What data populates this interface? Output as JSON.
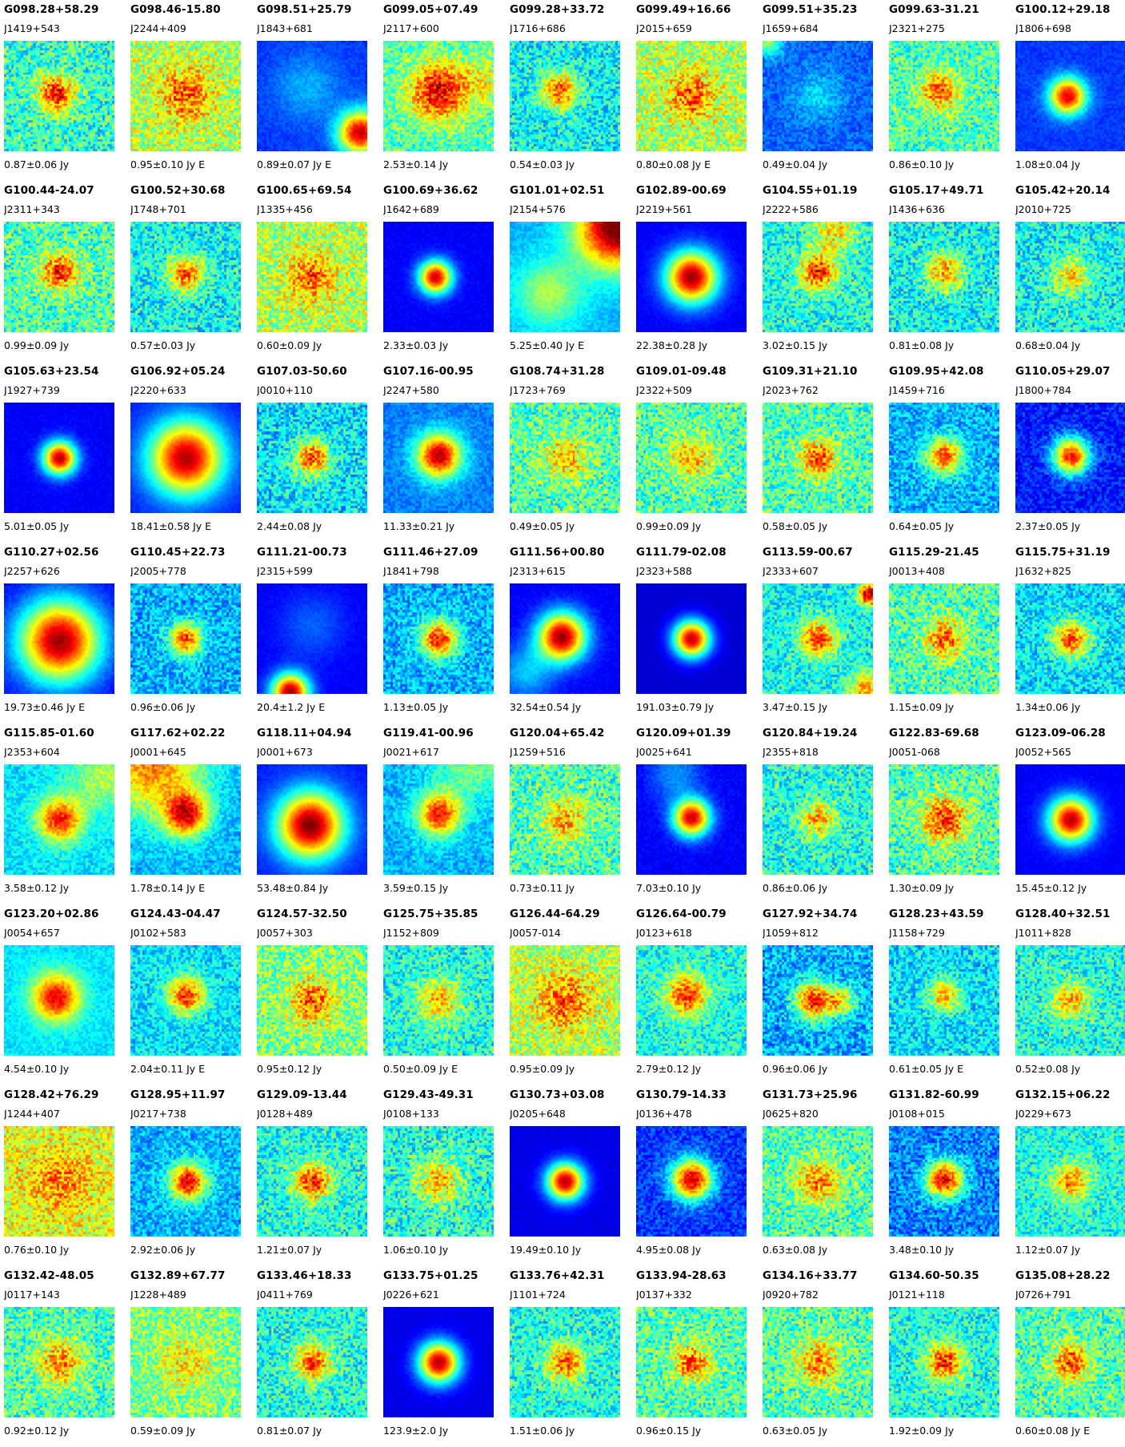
{
  "cells": [
    {
      "g": "G098.28+58.29",
      "j": "J1419+543",
      "f": "0.87±0.06 Jy"
    },
    {
      "g": "G098.46-15.80",
      "j": "J2244+409",
      "f": "0.95±0.10 Jy E"
    },
    {
      "g": "G098.51+25.79",
      "j": "J1843+681",
      "f": "0.89±0.07 Jy E"
    },
    {
      "g": "G099.05+07.49",
      "j": "J2117+600",
      "f": "2.53±0.14 Jy"
    },
    {
      "g": "G099.28+33.72",
      "j": "J1716+686",
      "f": "0.54±0.03 Jy"
    },
    {
      "g": "G099.49+16.66",
      "j": "J2015+659",
      "f": "0.80±0.08 Jy E"
    },
    {
      "g": "G099.51+35.23",
      "j": "J1659+684",
      "f": "0.49±0.04 Jy"
    },
    {
      "g": "G099.63-31.21",
      "j": "J2321+275",
      "f": "0.86±0.10 Jy"
    },
    {
      "g": "G100.12+29.18",
      "j": "J1806+698",
      "f": "1.08±0.04 Jy"
    },
    {
      "g": "G100.44-24.07",
      "j": "J2311+343",
      "f": "0.99±0.09 Jy"
    },
    {
      "g": "G100.52+30.68",
      "j": "J1748+701",
      "f": "0.57±0.03 Jy"
    },
    {
      "g": "G100.65+69.54",
      "j": "J1335+456",
      "f": "0.60±0.09 Jy"
    },
    {
      "g": "G100.69+36.62",
      "j": "J1642+689",
      "f": "2.33±0.03 Jy"
    },
    {
      "g": "G101.01+02.51",
      "j": "J2154+576",
      "f": "5.25±0.40 Jy E"
    },
    {
      "g": "G102.89-00.69",
      "j": "J2219+561",
      "f": "22.38±0.28 Jy"
    },
    {
      "g": "G104.55+01.19",
      "j": "J2222+586",
      "f": "3.02±0.15 Jy"
    },
    {
      "g": "G105.17+49.71",
      "j": "J1436+636",
      "f": "0.81±0.08 Jy"
    },
    {
      "g": "G105.42+20.14",
      "j": "J2010+725",
      "f": "0.68±0.04 Jy"
    },
    {
      "g": "G105.63+23.54",
      "j": "J1927+739",
      "f": "5.01±0.05 Jy"
    },
    {
      "g": "G106.92+05.24",
      "j": "J2220+633",
      "f": "18.41±0.58 Jy E"
    },
    {
      "g": "G107.03-50.60",
      "j": "J0010+110",
      "f": "2.44±0.08 Jy"
    },
    {
      "g": "G107.16-00.95",
      "j": "J2247+580",
      "f": "11.33±0.21 Jy"
    },
    {
      "g": "G108.74+31.28",
      "j": "J1723+769",
      "f": "0.49±0.05 Jy"
    },
    {
      "g": "G109.01-09.48",
      "j": "J2322+509",
      "f": "0.99±0.09 Jy"
    },
    {
      "g": "G109.31+21.10",
      "j": "J2023+762",
      "f": "0.58±0.05 Jy"
    },
    {
      "g": "G109.95+42.08",
      "j": "J1459+716",
      "f": "0.64±0.05 Jy"
    },
    {
      "g": "G110.05+29.07",
      "j": "J1800+784",
      "f": "2.37±0.05 Jy"
    },
    {
      "g": "G110.27+02.56",
      "j": "J2257+626",
      "f": "19.73±0.46 Jy E"
    },
    {
      "g": "G110.45+22.73",
      "j": "J2005+778",
      "f": "0.96±0.06 Jy"
    },
    {
      "g": "G111.21-00.73",
      "j": "J2315+599",
      "f": "20.4±1.2 Jy E"
    },
    {
      "g": "G111.46+27.09",
      "j": "J1841+798",
      "f": "1.13±0.05 Jy"
    },
    {
      "g": "G111.56+00.80",
      "j": "J2313+615",
      "f": "32.54±0.54 Jy"
    },
    {
      "g": "G111.79-02.08",
      "j": "J2323+588",
      "f": "191.03±0.79 Jy"
    },
    {
      "g": "G113.59-00.67",
      "j": "J2333+607",
      "f": "3.47±0.15 Jy"
    },
    {
      "g": "G115.29-21.45",
      "j": "J0013+408",
      "f": "1.15±0.09 Jy"
    },
    {
      "g": "G115.75+31.19",
      "j": "J1632+825",
      "f": "1.34±0.06 Jy"
    },
    {
      "g": "G115.85-01.60",
      "j": "J2353+604",
      "f": "3.58±0.12 Jy"
    },
    {
      "g": "G117.62+02.22",
      "j": "J0001+645",
      "f": "1.78±0.14 Jy E"
    },
    {
      "g": "G118.11+04.94",
      "j": "J0001+673",
      "f": "53.48±0.84 Jy"
    },
    {
      "g": "G119.41-00.96",
      "j": "J0021+617",
      "f": "3.59±0.15 Jy"
    },
    {
      "g": "G120.04+65.42",
      "j": "J1259+516",
      "f": "0.73±0.11 Jy"
    },
    {
      "g": "G120.09+01.39",
      "j": "J0025+641",
      "f": "7.03±0.10 Jy"
    },
    {
      "g": "G120.84+19.24",
      "j": "J2355+818",
      "f": "0.86±0.06 Jy"
    },
    {
      "g": "G122.83-69.68",
      "j": "J0051-068",
      "f": "1.30±0.09 Jy"
    },
    {
      "g": "G123.09-06.28",
      "j": "J0052+565",
      "f": "15.45±0.12 Jy"
    },
    {
      "g": "G123.20+02.86",
      "j": "J0054+657",
      "f": "4.54±0.10 Jy"
    },
    {
      "g": "G124.43-04.47",
      "j": "J0102+583",
      "f": "2.04±0.11 Jy E"
    },
    {
      "g": "G124.57-32.50",
      "j": "J0057+303",
      "f": "0.95±0.12 Jy"
    },
    {
      "g": "G125.75+35.85",
      "j": "J1152+809",
      "f": "0.50±0.09 Jy E"
    },
    {
      "g": "G126.44-64.29",
      "j": "J0057-014",
      "f": "0.95±0.09 Jy"
    },
    {
      "g": "G126.64-00.79",
      "j": "J0123+618",
      "f": "2.79±0.12 Jy"
    },
    {
      "g": "G127.92+34.74",
      "j": "J1059+812",
      "f": "0.96±0.06 Jy"
    },
    {
      "g": "G128.23+43.59",
      "j": "J1158+729",
      "f": "0.61±0.05 Jy E"
    },
    {
      "g": "G128.40+32.51",
      "j": "J1011+828",
      "f": "0.52±0.08 Jy"
    },
    {
      "g": "G128.42+76.29",
      "j": "J1244+407",
      "f": "0.76±0.10 Jy"
    },
    {
      "g": "G128.95+11.97",
      "j": "J0217+738",
      "f": "2.92±0.06 Jy"
    },
    {
      "g": "G129.09-13.44",
      "j": "J0128+489",
      "f": "1.21±0.07 Jy"
    },
    {
      "g": "G129.43-49.31",
      "j": "J0108+133",
      "f": "1.06±0.10 Jy"
    },
    {
      "g": "G130.73+03.08",
      "j": "J0205+648",
      "f": "19.49±0.10 Jy"
    },
    {
      "g": "G130.79-14.33",
      "j": "J0136+478",
      "f": "4.95±0.08 Jy"
    },
    {
      "g": "G131.73+25.96",
      "j": "J0625+820",
      "f": "0.63±0.08 Jy"
    },
    {
      "g": "G131.82-60.99",
      "j": "J0108+015",
      "f": "3.48±0.10 Jy"
    },
    {
      "g": "G132.15+06.22",
      "j": "J0229+673",
      "f": "1.12±0.07 Jy"
    },
    {
      "g": "G132.42-48.05",
      "j": "J0117+143",
      "f": "0.92±0.12 Jy"
    },
    {
      "g": "G132.89+67.77",
      "j": "J1228+489",
      "f": "0.59±0.09 Jy"
    },
    {
      "g": "G133.46+18.33",
      "j": "J0411+769",
      "f": "0.81±0.07 Jy"
    },
    {
      "g": "G133.75+01.25",
      "j": "J0226+621",
      "f": "123.9±2.0 Jy"
    },
    {
      "g": "G133.76+42.31",
      "j": "J1101+724",
      "f": "1.51±0.06 Jy"
    },
    {
      "g": "G133.94-28.63",
      "j": "J0137+332",
      "f": "0.96±0.15 Jy"
    },
    {
      "g": "G134.16+33.77",
      "j": "J0920+782",
      "f": "0.63±0.05 Jy"
    },
    {
      "g": "G134.60-50.35",
      "j": "J0121+118",
      "f": "1.92±0.09 Jy"
    },
    {
      "g": "G135.08+28.22",
      "j": "J0726+791",
      "f": "0.60±0.08 Jy E"
    }
  ]
}
